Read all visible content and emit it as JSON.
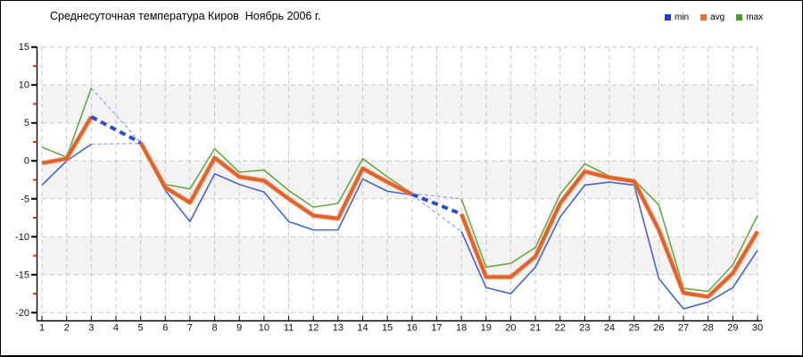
{
  "header": {
    "title": "Среднесуточная температура Киров  Ноябрь 2006 г."
  },
  "legend": {
    "items": [
      {
        "label": "min",
        "swatch_color": "#2038e8"
      },
      {
        "label": "avg",
        "swatch_color": "#ed6f2e"
      },
      {
        "label": "max",
        "swatch_color": "#48a221"
      }
    ]
  },
  "chart_data": {
    "type": "line",
    "title": "Среднесуточная температура Киров  Ноябрь 2006 г.",
    "xlabel": "",
    "ylabel": "",
    "x": [
      1,
      2,
      3,
      4,
      5,
      6,
      7,
      8,
      9,
      10,
      11,
      12,
      13,
      14,
      15,
      16,
      17,
      18,
      19,
      20,
      21,
      22,
      23,
      24,
      25,
      26,
      27,
      28,
      29,
      30
    ],
    "x_tick_labels": [
      "1",
      "2",
      "3",
      "4",
      "5",
      "6",
      "7",
      "8",
      "9",
      "10",
      "11",
      "12",
      "13",
      "14",
      "15",
      "16",
      "17",
      "18",
      "19",
      "20",
      "21",
      "22",
      "23",
      "24",
      "25",
      "26",
      "27",
      "28",
      "29",
      "30"
    ],
    "ylim": [
      -20,
      15
    ],
    "y_major_ticks": [
      15,
      10,
      5,
      0,
      -5,
      -10,
      -15,
      -20
    ],
    "y_minor_ticks": [
      12.5,
      7.5,
      2.5,
      -2.5,
      -7.5,
      -12.5,
      -17.5
    ],
    "grid": true,
    "legend_position": "top-right",
    "missing_days": [
      4,
      17
    ],
    "series": [
      {
        "name": "min",
        "color": "#4565cf",
        "width": 1.6,
        "values": [
          -3.2,
          0.0,
          2.2,
          null,
          2.3,
          -3.9,
          -8.0,
          -1.7,
          -3.1,
          -4.1,
          -8.0,
          -9.1,
          -9.1,
          -2.4,
          -4.0,
          -4.5,
          null,
          -9.3,
          -16.7,
          -17.5,
          -14.0,
          -7.4,
          -3.2,
          -2.8,
          -3.2,
          -15.5,
          -19.5,
          -18.6,
          -16.7,
          -11.8
        ]
      },
      {
        "name": "avg",
        "color": "#e2622a",
        "width": 4,
        "values": [
          -0.3,
          0.3,
          5.8,
          null,
          2.4,
          -3.5,
          -5.5,
          0.4,
          -2.1,
          -2.6,
          -5.0,
          -7.2,
          -7.6,
          -1.0,
          -2.8,
          -4.4,
          null,
          -7.0,
          -15.3,
          -15.3,
          -12.6,
          -5.6,
          -1.4,
          -2.2,
          -2.7,
          -9.1,
          -17.4,
          -17.9,
          -14.8,
          -9.3
        ]
      },
      {
        "name": "max",
        "color": "#69a843",
        "width": 1.6,
        "values": [
          1.8,
          0.5,
          9.6,
          null,
          2.4,
          -3.1,
          -3.7,
          1.6,
          -1.5,
          -1.2,
          -3.9,
          -6.1,
          -5.6,
          0.3,
          -2.1,
          -4.3,
          null,
          -5.0,
          -14.0,
          -13.5,
          -11.4,
          -4.4,
          -0.4,
          -2.0,
          -2.5,
          -5.8,
          -16.8,
          -17.2,
          -13.7,
          -7.2
        ]
      }
    ],
    "gap_style": {
      "thin_color": "#8fa3ea",
      "thin_width": 1.2,
      "thick_color": "#2b4bd7",
      "thick_width": 4
    },
    "style": {
      "grid_color": "#c8c8c8",
      "band_color": "#f3f3f3",
      "bands_gray": [
        [
          10,
          5
        ],
        [
          0,
          -5
        ],
        [
          -10,
          -15
        ]
      ],
      "axis_color": "#000000",
      "minor_tick_color": "#cc3333",
      "tick_label_color": "#111111",
      "avg_halo_color": "#f2a478"
    }
  }
}
